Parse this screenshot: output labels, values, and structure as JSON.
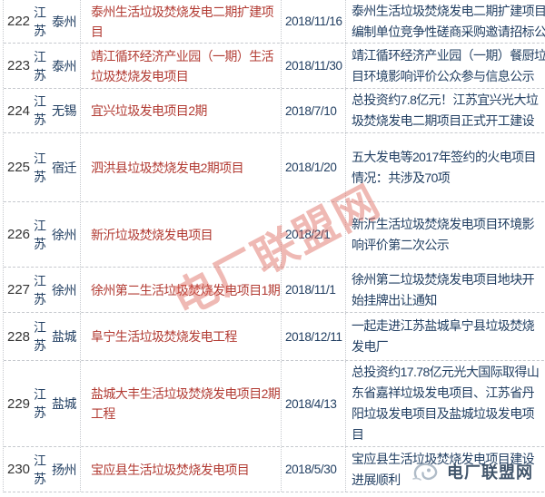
{
  "table": {
    "rows": [
      {
        "no": "222",
        "province": "江苏",
        "city": "泰州",
        "project": "泰州生活垃圾焚烧发电二期扩建项\n目",
        "date": "2018/11/16",
        "desc": "泰州生活垃圾焚烧发电二期扩建项目\n编制单位竞争性磋商采购邀请招标公"
      },
      {
        "no": "223",
        "province": "江苏",
        "city": "泰州",
        "project": "靖江循环经济产业园（一期）生活\n垃圾焚烧发电项目",
        "date": "2018/11/30",
        "desc": "靖江循环经济产业园（一期）餐厨垃\n目环境影响评价公众参与信息公示"
      },
      {
        "no": "224",
        "province": "江苏",
        "city": "无锡",
        "project": "宜兴垃圾发电项目2期",
        "date": "2018/7/10",
        "desc": "总投资约7.8亿元！江苏宜兴光大垃\n圾焚烧发电二期项目正式开工建设"
      },
      {
        "no": "225",
        "province": "江苏",
        "city": "宿迁",
        "project": "泗洪县垃圾焚烧发电2期项目",
        "date": "2018/1/20",
        "desc": "五大发电等2017年签约的火电项目\n情况：共涉及70项"
      },
      {
        "no": "226",
        "province": "江苏",
        "city": "徐州",
        "project": "新沂垃圾焚烧发电项目",
        "date": "2018/2/1",
        "desc": "新沂生活垃圾焚烧发电项目环境影\n响评价第二次公示"
      },
      {
        "no": "227",
        "province": "江苏",
        "city": "徐州",
        "project": "徐州第二生活垃圾焚烧发电项目1期",
        "date": "2018/11/1",
        "desc": "徐州第二垃圾焚烧发电项目地块开\n始挂牌出让通知"
      },
      {
        "no": "228",
        "province": "江苏",
        "city": "盐城",
        "project": "阜宁生活垃圾焚烧发电工程",
        "date": "2018/12/11",
        "desc": "一起走进江苏盐城阜宁县垃圾焚烧\n发电厂"
      },
      {
        "no": "229",
        "province": "江苏",
        "city": "盐城",
        "project": "盐城大丰生活垃圾焚烧发电项目2期\n工程",
        "date": "2018/4/13",
        "desc": "总投资约17.78亿元光大国际取得山\n东省嘉祥垃圾发电项目、江苏省丹\n阳垃圾发电项目及盐城垃圾发电项\n目"
      },
      {
        "no": "230",
        "province": "江苏",
        "city": "扬州",
        "project": "宝应县生活垃圾焚烧发电项目",
        "date": "2018/5/30",
        "desc": "宝应县生活垃圾焚烧发电项目建设\n进展顺利"
      }
    ]
  },
  "watermark": {
    "text": "电厂联盟网"
  },
  "logo": {
    "text": "电厂联盟网",
    "icon": "swirl-logo-icon"
  },
  "colors": {
    "project_text": "#b23b33",
    "body_text": "#234063",
    "number_text": "#333333",
    "border": "#c6c9ce",
    "watermark": "#db6359",
    "logo_text": "#273d56"
  }
}
